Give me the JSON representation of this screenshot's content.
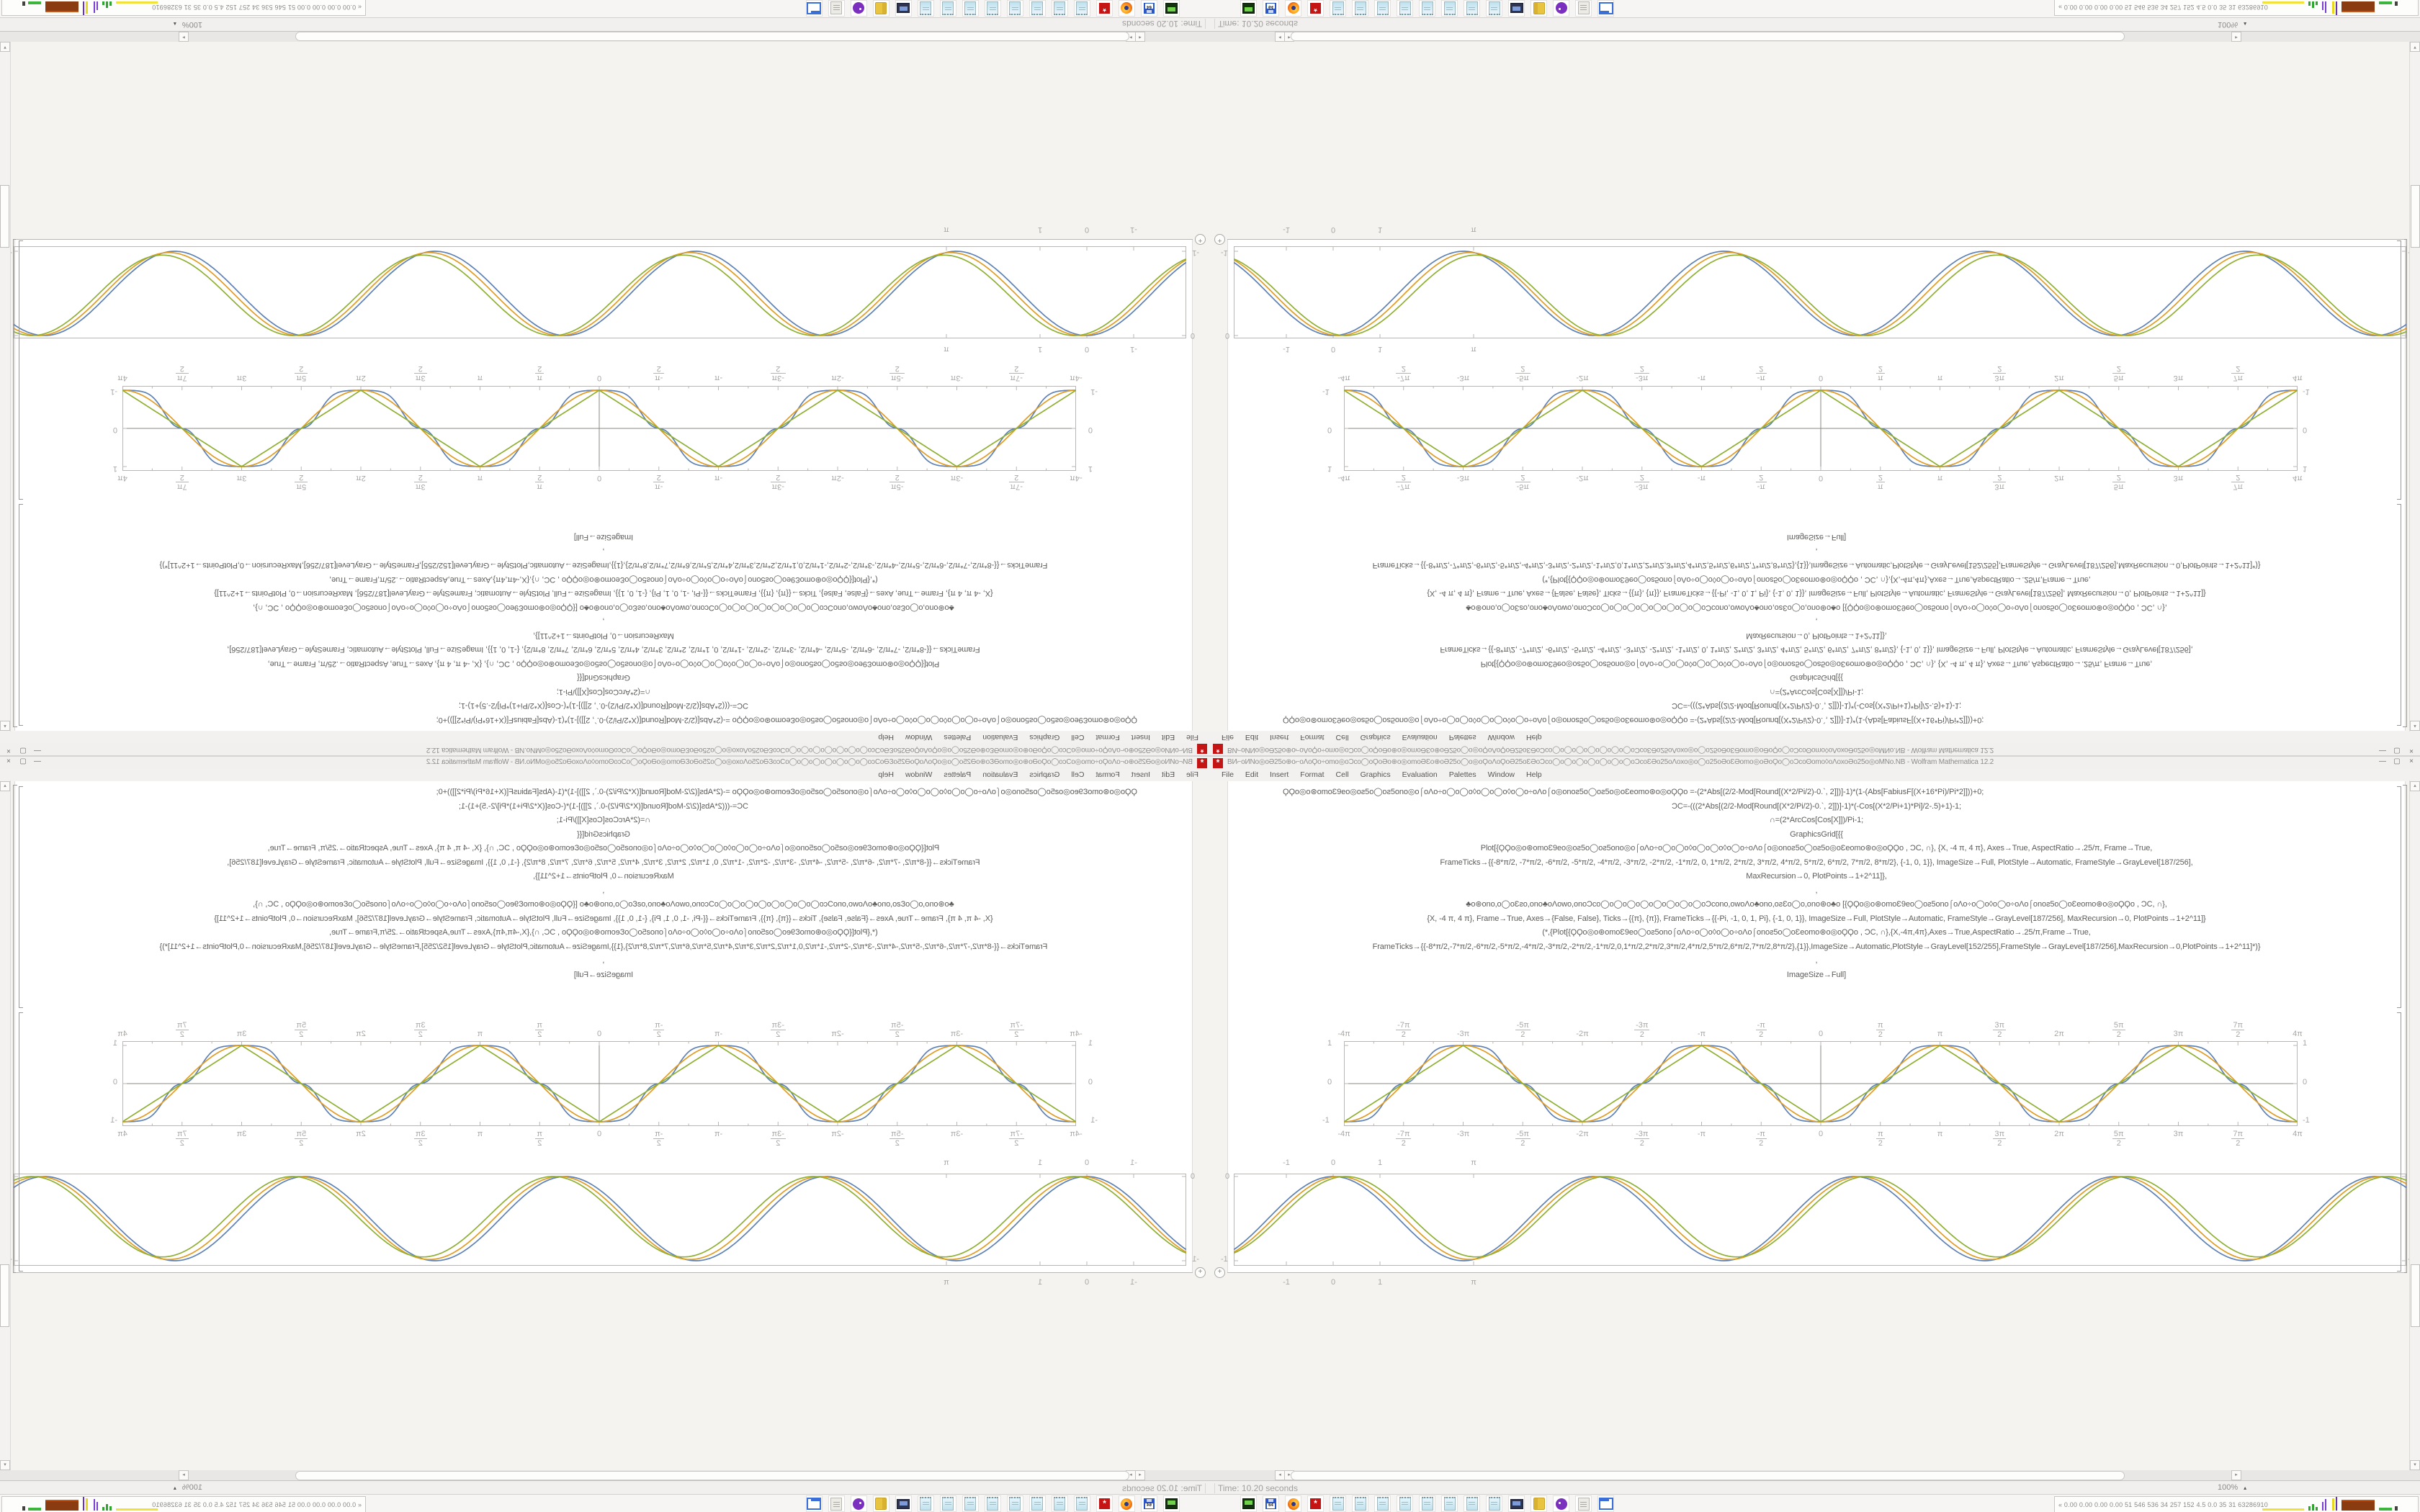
{
  "window": {
    "title_garble": "ВИ⌐oИNo◎oƏ25o⊕o⌐oΛoϘo÷omo◎oƆco◯oϘoƏo⊕o◎omoƏƐo⊕oƏ25o◯o◎oϘoΛoϘoƏ25oƐƏoƆco◯o◯o◯o◯o◯o◯o◯oƆcoƐƏo25oΛoxo◎o◯o25oƏoƐƏomo◎oƏoϘo◯oƆcoʘomo◊oΛoxoƏo25o◎oMNo",
    "title_suffix": ".NB - Wolfram Mathematica 12.2",
    "window_buttons": [
      "—",
      "▢",
      "×"
    ],
    "menu": [
      "File",
      "Edit",
      "Insert",
      "Format",
      "Cell",
      "Graphics",
      "Evaluation",
      "Palettes",
      "Window",
      "Help"
    ],
    "status": {
      "time_label": "Time: 10.20 seconds",
      "zoom_label": "100%",
      "zoom_arrow": "▴"
    }
  },
  "code_cell": {
    "lines": [
      "ϘϘo◎o⊛omoƐ9eo◎oƨ5o◯oƨ5ono◎o⌠oΛo÷o◯o◯o◊o◯o◯o◊o◯o÷oΛo⌠o◎onoƨ5o◯oƨ5o◎oƐeomo⊛o◎oϘϘo  =-(2*Abs[(2/2-Mod[Round[(X*2/Pi/2)-0.`, 2]])]-1)*(1-(Abs[FabiusF[(X+16*Pi)/Pi*2]]))+0;",
      "ƆC=-(((2*Abs[(2/2-Mod[Round[(X*2/Pi/2)-0.`, 2]])]-1)*(-Cos[(X*2/Pi+1)*Pi]/2-.5)+1)-1;",
      "∩=(2*ArcCos[Cos[X]])/Pi-1;",
      "GraphicsGrid[{{",
      "Plot[{ϘϘo◎o⊛omoƐ9eo◎oƨ5o◯oƨ5ono◎o⌠oΛo÷o◯o◯o◊o◯o◯o◊o◯o÷oΛo⌠o◎onoƨ5o◯oƨ5o◎oƐeomo⊛o◎oϘϘo , ƆC, ∩}, {X, -4 π, 4 π}, Axes→True, AspectRatio→.25/π, Frame→True,",
      "FrameTicks→{{-8*π/2, -7*π/2, -6*π/2, -5*π/2, -4*π/2, -3*π/2, -2*π/2, -1*π/2, 0, 1*π/2, 2*π/2, 3*π/2, 4*π/2, 5*π/2, 6*π/2, 7*π/2, 8*π/2}, {-1, 0, 1}}, ImageSize→Full, PlotStyle→Automatic, FrameStyle→GrayLevel[187/256],",
      "MaxRecursion→0, PlotPoints→1+2^11]},",
      ",",
      "♣o⊛ono,o◯oƐƨo,ono♣oΛowo,onoƆco◯o◯o◯o◯o◯o◯o◯o◯oƆcono,owoΛo♣ono,oƨƐo◯o,ono⊛o♣o  [{ϘϘo◎o⊛omoƐ9eo◯oƨ5ono⌠oΛo÷o◯o◊o◯o÷oΛo⌠onoƨ5o◯oƐeomo⊛o◎oϘϘo , ƆC, ∩},",
      "{X, -4 π, 4 π}, Frame→True, Axes→{False, False}, Ticks→{{π}, {π}}, FrameTicks→{{-Pi, -1, 0, 1, Pi}, {-1, 0, 1}}, ImageSize→Full, PlotStyle→Automatic, FrameStyle→GrayLevel[187/256], MaxRecursion→0, PlotPoints→1+2^11]}",
      "(*,{Plot[{ϘϘo◎o⊛omoƐ9eo◯oƨ5ono⌠oΛo÷o◯o◊o◯o÷oΛo⌠onoƨ5o◯oƐeomo⊛o◎oϘϘo , ƆC, ∩},{X,-4π,4π},Axes→True,AspectRatio→.25/π,Frame→True,",
      "FrameTicks→{{-8*π/2,-7*π/2,-6*π/2,-5*π/2,-4*π/2,-3*π/2,-2*π/2,-1*π/2,0,1*π/2,2*π/2,3*π/2,4*π/2,5*π/2,6*π/2,7*π/2,8*π/2},{1}},ImageSize→Automatic,PlotStyle→GrayLevel[152/255],FrameStyle→GrayLevel[187/256],MaxRecursion→0,PlotPoints→1+2^11]*)}",
      ",",
      "ImageSize→Full]"
    ]
  },
  "chart_data": [
    {
      "type": "line",
      "title": "",
      "xlabel": "X",
      "x_range": [
        -12.566,
        12.566
      ],
      "x_range_label": "{X, -4π, 4π}",
      "ylim": [
        -1,
        1
      ],
      "frame": true,
      "axes": true,
      "grid": false,
      "x_ticks": [
        "-4π",
        "-7π/2",
        "-3π",
        "-5π/2",
        "-2π",
        "-3π/2",
        "-π",
        "-π/2",
        "0",
        "π/2",
        "π",
        "3π/2",
        "2π",
        "5π/2",
        "3π",
        "7π/2",
        "4π"
      ],
      "y_ticks": [
        "1",
        "0",
        "-1"
      ],
      "periods": 4,
      "series": [
        {
          "name": "fabius-smoothed-square-wave",
          "shape": "square",
          "color": "#5e81b5",
          "amp": 1.0
        },
        {
          "name": "negative-cosine-wave",
          "shape": "cos",
          "color": "#e19c24",
          "amp": 1.0
        },
        {
          "name": "arccos-triangle-wave",
          "shape": "tri",
          "color": "#8fb032",
          "amp": 1.0
        }
      ]
    },
    {
      "type": "line",
      "title": "",
      "xlabel": "X",
      "ylim": [
        -1,
        0
      ],
      "frame": true,
      "axes": false,
      "grid": false,
      "x_ticks": [
        "-1",
        "0",
        "1",
        "π"
      ],
      "x_tick_offsets": [
        73,
        138,
        203,
        333
      ],
      "corner_y_labels": {
        "top": "0",
        "bottom": "-1"
      },
      "periods": 4.5,
      "series": [
        {
          "name": "arch-wave-blue",
          "shape": "arch",
          "phase": 0.0,
          "color": "#5e81b5",
          "amp": 1.0
        },
        {
          "name": "arch-wave-orange",
          "shape": "arch",
          "phase": 0.14,
          "color": "#e19c24",
          "amp": 0.985
        },
        {
          "name": "arch-wave-green",
          "shape": "arch",
          "phase": 0.3,
          "color": "#8fb032",
          "amp": 0.955
        }
      ]
    }
  ],
  "taskbar": {
    "icons": [
      {
        "name": "screen-app-icon",
        "kind": "screen"
      },
      {
        "name": "floppy-64-icon",
        "kind": "floppy"
      },
      {
        "name": "firefox-icon",
        "kind": "firefox"
      },
      {
        "name": "red-gear-icon",
        "kind": "redgear"
      },
      {
        "name": "text-editor-icon",
        "kind": "notepad"
      },
      {
        "name": "text-editor-icon",
        "kind": "notepad"
      },
      {
        "name": "text-editor-icon",
        "kind": "notepad"
      },
      {
        "name": "text-editor-icon",
        "kind": "notepad"
      },
      {
        "name": "text-editor-icon",
        "kind": "notepad"
      },
      {
        "name": "text-editor-icon",
        "kind": "notepad"
      },
      {
        "name": "text-editor-icon",
        "kind": "notepad"
      },
      {
        "name": "text-editor-icon",
        "kind": "notepad"
      },
      {
        "name": "display-settings-icon",
        "kind": "monitor"
      },
      {
        "name": "folder-icon",
        "kind": "folder"
      },
      {
        "name": "purple-app-icon",
        "kind": "purple"
      },
      {
        "name": "document-scroll-icon",
        "kind": "scroll"
      },
      {
        "name": "window-app-icon",
        "kind": "bluewin"
      }
    ],
    "monitor_widget": {
      "values": "« 0.00 0.00 0.00 0.00   51   546   536   34   257   152   4.5   0.0   35   31   63286910"
    }
  },
  "icon_labels": {
    "app_icon_glyph": "*",
    "insert_plus": "+"
  },
  "colors": {
    "curve_blue": "#5e81b5",
    "curve_orange": "#e19c24",
    "curve_green": "#8fb032",
    "frame": "#b8b7b5",
    "axis": "#8a8987",
    "tick_label": "#a8a7a5"
  }
}
